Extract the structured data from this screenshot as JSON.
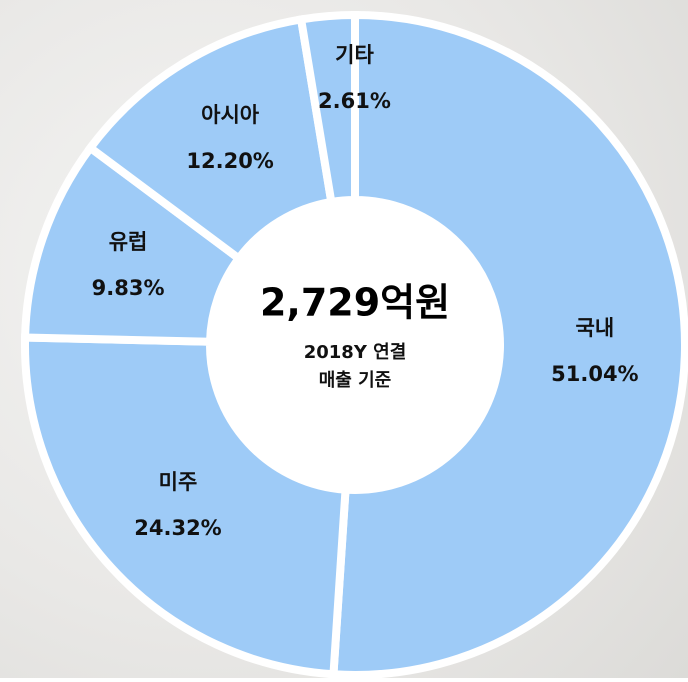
{
  "chart_data": {
    "type": "donut",
    "categories": [
      "국내",
      "미주",
      "유럽",
      "아시아",
      "기타"
    ],
    "values": [
      51.04,
      24.32,
      9.83,
      12.2,
      2.61
    ],
    "value_labels": [
      "51.04%",
      "24.32%",
      "9.83%",
      "12.20%",
      "2.61%"
    ],
    "color": "#9ecbf7",
    "center_title": "2,729억원",
    "center_subtitle": [
      "2018Y 연결",
      "매출 기준"
    ]
  }
}
